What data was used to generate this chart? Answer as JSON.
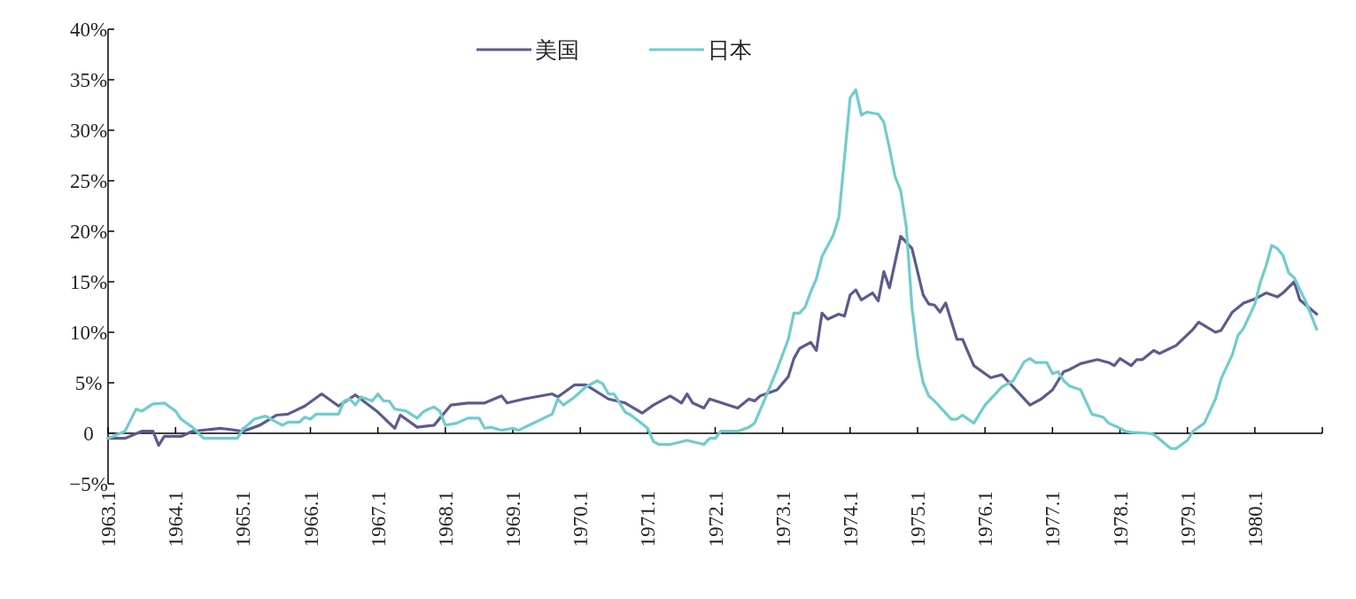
{
  "chart_data": {
    "type": "line",
    "legend": "top",
    "xlim": [
      "1963-01",
      "1981-01"
    ],
    "xticks": [
      {
        "value": "1963-01",
        "label": "1963.1"
      },
      {
        "value": "1964-01",
        "label": "1964.1"
      },
      {
        "value": "1965-01",
        "label": "1965.1"
      },
      {
        "value": "1966-01",
        "label": "1966.1"
      },
      {
        "value": "1967-01",
        "label": "1967.1"
      },
      {
        "value": "1968-01",
        "label": "1968.1"
      },
      {
        "value": "1969-01",
        "label": "1969.1"
      },
      {
        "value": "1970-01",
        "label": "1970.1"
      },
      {
        "value": "1971-01",
        "label": "1971.1"
      },
      {
        "value": "1972-01",
        "label": "1972.1"
      },
      {
        "value": "1973-01",
        "label": "1973.1"
      },
      {
        "value": "1974-01",
        "label": "1974.1"
      },
      {
        "value": "1975-01",
        "label": "1975.1"
      },
      {
        "value": "1976-01",
        "label": "1976.1"
      },
      {
        "value": "1977-01",
        "label": "1977.1"
      },
      {
        "value": "1978-01",
        "label": "1978.1"
      },
      {
        "value": "1979-01",
        "label": "1979.1"
      },
      {
        "value": "1980-01",
        "label": "1980.1"
      },
      {
        "value": "1981-01",
        "label": null
      }
    ],
    "ylim": [
      -5,
      40
    ],
    "yticks": [
      {
        "value": -5,
        "label": "−5%"
      },
      {
        "value": 0,
        "label": "0"
      },
      {
        "value": 5,
        "label": "5%"
      },
      {
        "value": 10,
        "label": "10%"
      },
      {
        "value": 15,
        "label": "15%"
      },
      {
        "value": 20,
        "label": "20%"
      },
      {
        "value": 25,
        "label": "25%"
      },
      {
        "value": 30,
        "label": "30%"
      },
      {
        "value": 35,
        "label": "35%"
      },
      {
        "value": 40,
        "label": "40%"
      }
    ],
    "series": [
      {
        "name": "美国",
        "color": "#5b5b8f",
        "x": [
          "1963-01",
          "1963-04",
          "1963-07",
          "1963-09",
          "1963-10",
          "1963-11",
          "1964-02",
          "1964-04",
          "1964-09",
          "1965-01",
          "1965-04",
          "1965-07",
          "1965-09",
          "1965-12",
          "1966-03",
          "1966-06",
          "1966-09",
          "1967-01",
          "1967-04",
          "1967-05",
          "1967-08",
          "1967-11",
          "1968-02",
          "1968-05",
          "1968-08",
          "1968-11",
          "1968-12",
          "1969-03",
          "1969-08",
          "1969-09",
          "1969-12",
          "1970-02",
          "1970-06",
          "1970-09",
          "1970-12",
          "1971-02",
          "1971-05",
          "1971-07",
          "1971-08",
          "1971-09",
          "1971-11",
          "1971-12",
          "1972-05",
          "1972-07",
          "1972-08",
          "1972-09",
          "1972-12",
          "1973-02",
          "1973-03",
          "1973-04",
          "1973-06",
          "1973-07",
          "1973-08",
          "1973-09",
          "1973-11",
          "1973-12",
          "1974-01",
          "1974-02",
          "1974-03",
          "1974-05",
          "1974-06",
          "1974-07",
          "1974-08",
          "1974-10",
          "1974-12",
          "1975-02",
          "1975-03",
          "1975-04",
          "1975-05",
          "1975-06",
          "1975-08",
          "1975-09",
          "1975-11",
          "1976-02",
          "1976-04",
          "1976-06",
          "1976-09",
          "1976-11",
          "1977-01",
          "1977-03",
          "1977-04",
          "1977-06",
          "1977-09",
          "1977-11",
          "1977-12",
          "1978-01",
          "1978-03",
          "1978-04",
          "1978-05",
          "1978-07",
          "1978-08",
          "1978-11",
          "1979-02",
          "1979-03",
          "1979-06",
          "1979-07",
          "1979-09",
          "1979-11",
          "1980-01",
          "1980-03",
          "1980-05",
          "1980-06",
          "1980-08",
          "1980-09",
          "1980-12"
        ],
        "values": [
          -0.5,
          -0.5,
          0.2,
          0.2,
          -1.2,
          -0.3,
          -0.3,
          0.2,
          0.5,
          0.2,
          0.8,
          1.8,
          1.9,
          2.7,
          3.9,
          2.7,
          3.8,
          2.1,
          0.5,
          1.8,
          0.6,
          0.8,
          2.8,
          3.0,
          3.0,
          3.7,
          3.0,
          3.4,
          3.9,
          3.6,
          4.8,
          4.8,
          3.4,
          3.0,
          2.0,
          2.8,
          3.7,
          3.0,
          3.9,
          3.0,
          2.5,
          3.4,
          2.5,
          3.4,
          3.2,
          3.7,
          4.3,
          5.6,
          7.4,
          8.4,
          9.0,
          8.2,
          11.9,
          11.3,
          11.8,
          11.6,
          13.7,
          14.2,
          13.2,
          13.9,
          13.1,
          16.0,
          14.4,
          19.5,
          18.3,
          13.7,
          12.8,
          12.7,
          12.0,
          12.9,
          9.3,
          9.3,
          6.7,
          5.5,
          5.8,
          4.6,
          2.8,
          3.4,
          4.3,
          6.1,
          6.3,
          6.9,
          7.3,
          7.0,
          6.7,
          7.4,
          6.7,
          7.3,
          7.3,
          8.2,
          7.9,
          8.7,
          10.3,
          11.0,
          10.0,
          10.2,
          12.0,
          12.9,
          13.3,
          13.9,
          13.5,
          13.9,
          15.0,
          13.2,
          11.8
        ]
      },
      {
        "name": "日本",
        "color": "#70cccc",
        "x": [
          "1963-01",
          "1963-04",
          "1963-06",
          "1963-07",
          "1963-09",
          "1963-11",
          "1964-01",
          "1964-02",
          "1964-04",
          "1964-06",
          "1964-12",
          "1965-01",
          "1965-03",
          "1965-05",
          "1965-08",
          "1965-09",
          "1965-11",
          "1965-12",
          "1966-01",
          "1966-02",
          "1966-06",
          "1966-07",
          "1966-08",
          "1966-09",
          "1966-10",
          "1966-12",
          "1967-01",
          "1967-02",
          "1967-03",
          "1967-04",
          "1967-06",
          "1967-08",
          "1967-09",
          "1967-10",
          "1967-11",
          "1967-12",
          "1968-01",
          "1968-03",
          "1968-05",
          "1968-07",
          "1968-08",
          "1968-09",
          "1968-11",
          "1969-01",
          "1969-02",
          "1969-05",
          "1969-08",
          "1969-09",
          "1969-10",
          "1969-12",
          "1970-02",
          "1970-04",
          "1970-05",
          "1970-06",
          "1970-07",
          "1970-09",
          "1970-10",
          "1971-01",
          "1971-02",
          "1971-03",
          "1971-05",
          "1971-08",
          "1971-11",
          "1971-12",
          "1972-01",
          "1972-02",
          "1972-05",
          "1972-07",
          "1972-08",
          "1972-10",
          "1972-12",
          "1973-02",
          "1973-03",
          "1973-04",
          "1973-05",
          "1973-06",
          "1973-07",
          "1973-08",
          "1973-10",
          "1973-11",
          "1974-01",
          "1974-02",
          "1974-03",
          "1974-04",
          "1974-06",
          "1974-07",
          "1974-08",
          "1974-09",
          "1974-10",
          "1974-11",
          "1974-12",
          "1975-01",
          "1975-02",
          "1975-03",
          "1975-04",
          "1975-07",
          "1975-08",
          "1975-09",
          "1975-11",
          "1976-01",
          "1976-04",
          "1976-06",
          "1976-08",
          "1976-09",
          "1976-10",
          "1976-12",
          "1977-01",
          "1977-02",
          "1977-03",
          "1977-04",
          "1977-06",
          "1977-08",
          "1977-10",
          "1977-11",
          "1978-01",
          "1978-02",
          "1978-03",
          "1978-06",
          "1978-07",
          "1978-10",
          "1978-11",
          "1979-01",
          "1979-02",
          "1979-04",
          "1979-06",
          "1979-07",
          "1979-09",
          "1979-10",
          "1979-11",
          "1980-01",
          "1980-02",
          "1980-03",
          "1980-04",
          "1980-05",
          "1980-06",
          "1980-07",
          "1980-08",
          "1980-10",
          "1980-12"
        ],
        "values": [
          -0.5,
          0.2,
          2.4,
          2.2,
          2.9,
          3.0,
          2.2,
          1.4,
          0.6,
          -0.5,
          -0.5,
          0.4,
          1.4,
          1.7,
          0.8,
          1.1,
          1.1,
          1.6,
          1.4,
          1.9,
          1.9,
          3.2,
          3.4,
          2.8,
          3.6,
          3.2,
          3.9,
          3.2,
          3.2,
          2.4,
          2.2,
          1.5,
          2.1,
          2.4,
          2.6,
          2.2,
          0.8,
          1.0,
          1.5,
          1.5,
          0.5,
          0.6,
          0.3,
          0.5,
          0.3,
          1.1,
          1.9,
          3.4,
          2.8,
          3.6,
          4.6,
          5.2,
          4.9,
          3.9,
          3.9,
          2.1,
          1.8,
          0.5,
          -0.8,
          -1.1,
          -1.1,
          -0.7,
          -1.1,
          -0.5,
          -0.5,
          0.2,
          0.2,
          0.6,
          1.0,
          3.6,
          6.3,
          9.3,
          11.9,
          11.9,
          12.5,
          14.0,
          15.3,
          17.5,
          19.6,
          21.4,
          33.2,
          34.0,
          31.5,
          31.8,
          31.6,
          30.8,
          28.2,
          25.4,
          24.0,
          20.4,
          12.5,
          7.8,
          5.0,
          3.7,
          3.2,
          1.4,
          1.4,
          1.8,
          1.0,
          2.8,
          4.6,
          5.2,
          7.1,
          7.4,
          7.0,
          7.0,
          5.9,
          6.1,
          5.2,
          4.7,
          4.3,
          1.9,
          1.6,
          1.0,
          0.5,
          0.2,
          0.1,
          0.0,
          -0.1,
          -1.5,
          -1.5,
          -0.7,
          0.2,
          1.0,
          3.4,
          5.4,
          7.8,
          9.7,
          10.4,
          12.8,
          15.0,
          16.6,
          18.6,
          18.3,
          17.6,
          15.9,
          15.4,
          13.1,
          10.3
        ]
      }
    ]
  }
}
